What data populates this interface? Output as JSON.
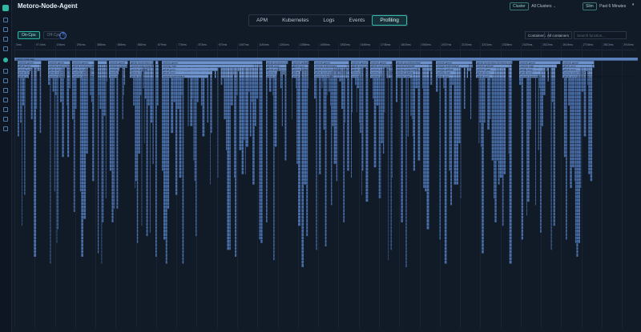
{
  "app": {
    "title": "Metoro-Node-Agent",
    "title_menu_icon": "vertical-dots-icon"
  },
  "header": {
    "cluster_label": "Cluster",
    "cluster_value": "All Clusters",
    "time_label": "Slim",
    "time_value": "Past 6 Minutes",
    "pause_icon": "pause-icon"
  },
  "tabs": [
    {
      "label": "APM",
      "active": false
    },
    {
      "label": "Kubernetes",
      "active": false
    },
    {
      "label": "Logs",
      "active": false
    },
    {
      "label": "Events",
      "active": false
    },
    {
      "label": "Profiling",
      "active": true
    }
  ],
  "profiling": {
    "cpu_on": "On-Cpu",
    "cpu_off": "Off-Cpu",
    "container_label": "Containers",
    "container_value": "All containers",
    "search_placeholder": "Search function..."
  },
  "ruler_ticks": [
    "0ms",
    "97.0ms",
    "194ms",
    "291ms",
    "388ms",
    "485ms",
    "582ms",
    "679ms",
    "776ms",
    "873ms",
    "970ms",
    "1067ms",
    "1164ms",
    "1261ms",
    "1358ms",
    "1455ms",
    "1552ms",
    "1649ms",
    "1746ms",
    "1843ms",
    "1940ms",
    "2037ms",
    "2134ms",
    "2231ms",
    "2328ms",
    "2425ms",
    "2522ms",
    "2619ms",
    "2716ms",
    "2813ms",
    "2910ms"
  ],
  "colors": {
    "accent": "#2fb7a6",
    "frame": "#4a6fa8",
    "frame_light": "#6f93cc",
    "background": "#111a27"
  },
  "flame_labels": {
    "root": "metoro-node-age",
    "row1": [
      "runtime.goexit",
      "runtime.goexit",
      "runtime.goexit",
      "github.com/cilium/ebpf",
      "runtime.goexit",
      "github.com/metoro-io/metoro-node-agent/internal",
      "runtime.goexit",
      "runtime.goexit",
      "github.com/coroot/coroot-node-agent/node",
      "runtime.gcBgMarkWorker"
    ],
    "row2": [
      "runtime.main",
      "github.com/...",
      "github.com/...",
      "runtime.systemstack",
      "github.com/coroot/coroot-node-agent/node/Containers/handleEvents",
      "github.com/metoro-io/.../parse",
      "runtime.schedule",
      "runtime.systemstack",
      "runtime.gcDrain"
    ]
  }
}
